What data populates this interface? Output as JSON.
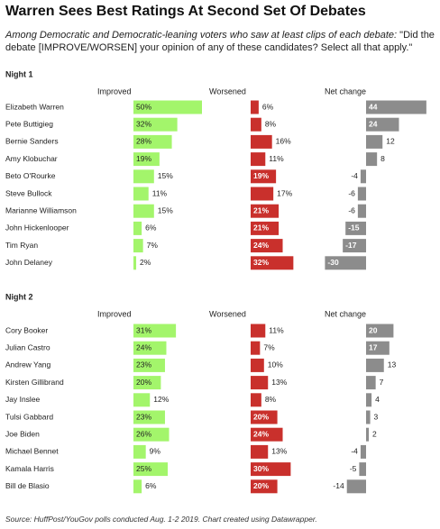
{
  "title": "Warren Sees Best Ratings At Second Set Of Debates",
  "subtitle_lead": "Among Democratic and Democratic-leaning voters who saw at least clips of each debate:",
  "subtitle_question": " \"Did the debate [IMPROVE/WORSEN] your opinion of any of these candidates? Select all that apply.\"",
  "source": "Source: HuffPost/YouGov polls conducted Aug. 1-2 2019. Chart created using Datawrapper.",
  "colors": {
    "improved": "#a3f56b",
    "worsened": "#c9302c",
    "net": "#8c8c8c",
    "text": "#222222"
  },
  "chart_data": [
    {
      "type": "bar",
      "title": "Night 1",
      "columns": [
        "Improved",
        "Worsened",
        "Net change"
      ],
      "categories": [
        "Elizabeth Warren",
        "Pete Buttigieg",
        "Bernie Sanders",
        "Amy Klobuchar",
        "Beto O'Rourke",
        "Steve Bullock",
        "Marianne Williamson",
        "John Hickenlooper",
        "Tim Ryan",
        "John Delaney"
      ],
      "series": [
        {
          "name": "Improved",
          "values": [
            50,
            32,
            28,
            19,
            15,
            11,
            15,
            6,
            7,
            2
          ],
          "unit": "%"
        },
        {
          "name": "Worsened",
          "values": [
            6,
            8,
            16,
            11,
            19,
            17,
            21,
            21,
            24,
            32
          ],
          "unit": "%"
        },
        {
          "name": "Net change",
          "values": [
            44,
            24,
            12,
            8,
            -4,
            -6,
            -6,
            -15,
            -17,
            -30
          ]
        }
      ]
    },
    {
      "type": "bar",
      "title": "Night 2",
      "columns": [
        "Improved",
        "Worsened",
        "Net change"
      ],
      "categories": [
        "Cory Booker",
        "Julian Castro",
        "Andrew Yang",
        "Kirsten Gillibrand",
        "Jay Inslee",
        "Tulsi Gabbard",
        "Joe Biden",
        "Michael Bennet",
        "Kamala Harris",
        "Bill de Blasio"
      ],
      "series": [
        {
          "name": "Improved",
          "values": [
            31,
            24,
            23,
            20,
            12,
            23,
            26,
            9,
            25,
            6
          ],
          "unit": "%"
        },
        {
          "name": "Worsened",
          "values": [
            11,
            7,
            10,
            13,
            8,
            20,
            24,
            13,
            30,
            20
          ],
          "unit": "%"
        },
        {
          "name": "Net change",
          "values": [
            20,
            17,
            13,
            7,
            4,
            3,
            2,
            -4,
            -5,
            -14
          ]
        }
      ]
    }
  ]
}
